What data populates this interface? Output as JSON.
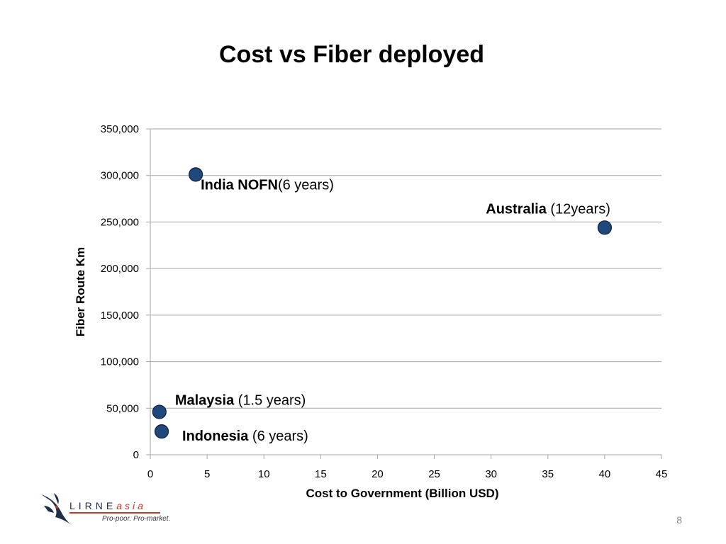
{
  "slide": {
    "title": "Cost vs Fiber deployed",
    "page_number": "8"
  },
  "logo": {
    "name_main": "LIRNE",
    "name_suffix": "asia",
    "tagline": "Pro-poor. Pro-market."
  },
  "chart_data": {
    "type": "scatter",
    "title": "",
    "xlabel": "Cost to Government (Billion USD)",
    "ylabel": "Fiber Route Km",
    "xlim": [
      0,
      45
    ],
    "ylim": [
      0,
      350000
    ],
    "xticks": [
      0,
      5,
      10,
      15,
      20,
      25,
      30,
      35,
      40,
      45
    ],
    "yticks": [
      0,
      50000,
      100000,
      150000,
      200000,
      250000,
      300000,
      350000
    ],
    "xtick_labels": [
      "0",
      "5",
      "10",
      "15",
      "20",
      "25",
      "30",
      "35",
      "40",
      "45"
    ],
    "ytick_labels": [
      "0",
      "50,000",
      "100,000",
      "150,000",
      "200,000",
      "250,000",
      "300,000",
      "350,000"
    ],
    "grid": "horizontal",
    "marker_color": "#1f497d",
    "points": [
      {
        "x": 4,
        "y": 301000,
        "bold": "India  NOFN",
        "normal": "(6 years)"
      },
      {
        "x": 40,
        "y": 244000,
        "bold": "Australia",
        "normal": " (12years)"
      },
      {
        "x": 0.8,
        "y": 46000,
        "bold": "Malaysia",
        "normal": " (1.5 years)"
      },
      {
        "x": 1,
        "y": 25000,
        "bold": "Indonesia",
        "normal": " (6 years)"
      }
    ]
  }
}
